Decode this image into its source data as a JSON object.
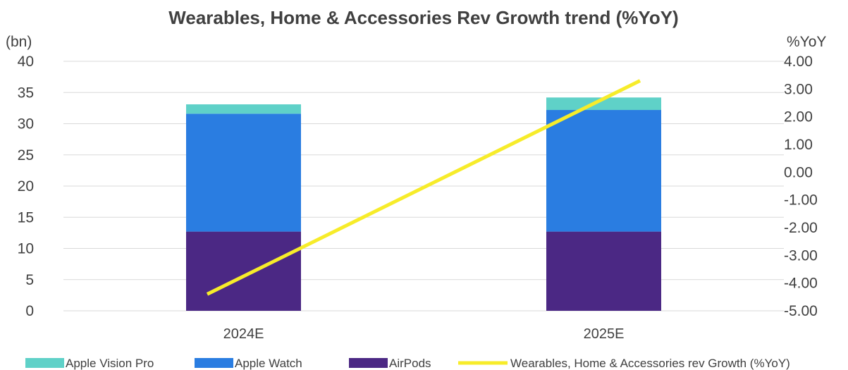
{
  "chart_data": {
    "type": "bar",
    "title": "Wearables, Home & Accessories Rev Growth trend (%YoY)",
    "left_axis_unit": "(bn)",
    "right_axis_unit": "%YoY",
    "categories": [
      "2024E",
      "2025E"
    ],
    "stacked": true,
    "ylim": [
      0,
      40
    ],
    "y_ticks": [
      0,
      5,
      10,
      15,
      20,
      25,
      30,
      35,
      40
    ],
    "y2lim": [
      -5,
      4
    ],
    "y2_ticks": [
      "-5.00",
      "-4.00",
      "-3.00",
      "-2.00",
      "-1.00",
      "0.00",
      "1.00",
      "2.00",
      "3.00",
      "4.00"
    ],
    "series": [
      {
        "name": "AirPods",
        "type": "bar",
        "axis": "left",
        "color": "#4b2884",
        "values": [
          12.7,
          12.7
        ]
      },
      {
        "name": "Apple Watch",
        "type": "bar",
        "axis": "left",
        "color": "#2a7de1",
        "values": [
          18.9,
          19.5
        ]
      },
      {
        "name": "Apple Vision Pro",
        "type": "bar",
        "axis": "left",
        "color": "#5fd1c8",
        "values": [
          1.5,
          2.0
        ]
      },
      {
        "name": "Wearables, Home & Accessories rev Growth (%YoY)",
        "type": "line",
        "axis": "right",
        "color": "#f7ec2a",
        "values": [
          -4.4,
          3.3
        ]
      }
    ],
    "legend": {
      "placement": "bottom",
      "order": [
        "Apple Vision Pro",
        "Apple Watch",
        "AirPods",
        "Wearables, Home & Accessories rev Growth (%YoY)"
      ]
    },
    "grid": true
  }
}
